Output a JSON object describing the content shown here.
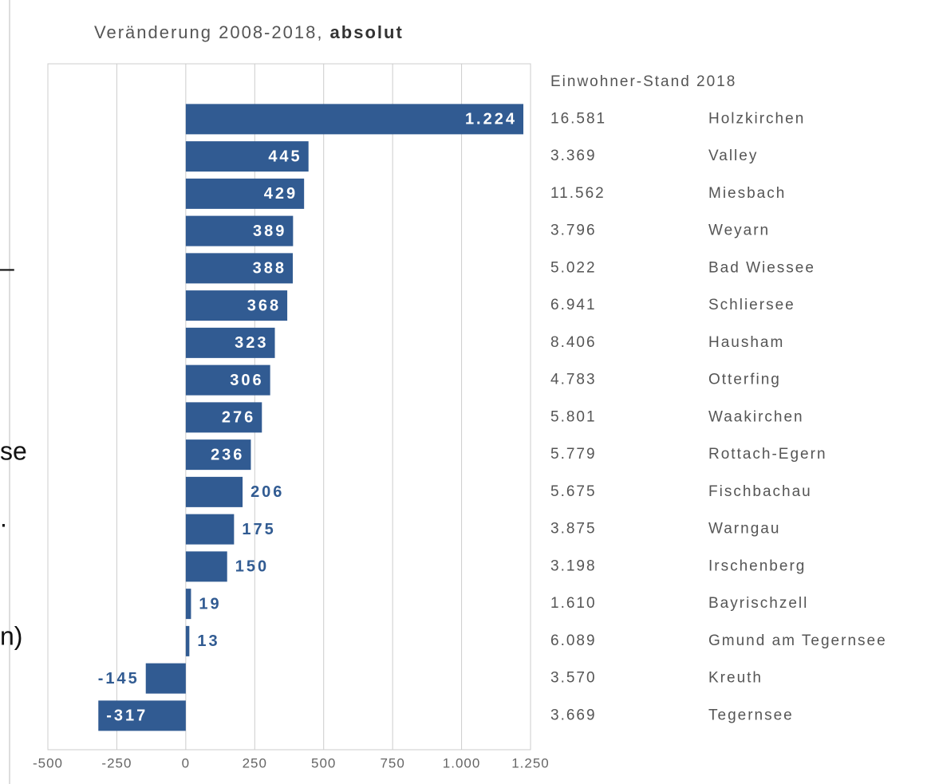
{
  "chart_data": {
    "type": "bar",
    "orientation": "horizontal",
    "title": "Veränderung 2008-2018, ",
    "title_emphasis": "absolut",
    "color": "#315b92",
    "grid": true,
    "categories": [
      "Holzkirchen",
      "Valley",
      "Miesbach",
      "Weyarn",
      "Bad Wiessee",
      "Schliersee",
      "Hausham",
      "Otterfing",
      "Waakirchen",
      "Rottach-Egern",
      "Fischbachau",
      "Warngau",
      "Irschenberg",
      "Bayrischzell",
      "Gmund am Tegernsee",
      "Kreuth",
      "Tegernsee"
    ],
    "values": [
      1224,
      445,
      429,
      389,
      388,
      368,
      323,
      306,
      276,
      236,
      206,
      175,
      150,
      19,
      13,
      -145,
      -317
    ],
    "value_labels": [
      "1.224",
      "445",
      "429",
      "389",
      "388",
      "368",
      "323",
      "306",
      "276",
      "236",
      "206",
      "175",
      "150",
      "19",
      "13",
      "-145",
      "-317"
    ],
    "xlim": [
      -500,
      1250
    ],
    "xticks": [
      -500,
      -250,
      0,
      250,
      500,
      750,
      {
        "value": 1000,
        "label": "1.000"
      },
      {
        "value": 1250,
        "label": "1.250"
      }
    ],
    "table_header": "Einwohner-Stand 2018",
    "population": [
      16581,
      3369,
      11562,
      3796,
      5022,
      6941,
      8406,
      4783,
      5801,
      5779,
      5675,
      3875,
      3198,
      1610,
      6089,
      3570,
      3669
    ],
    "population_labels": [
      "16.581",
      "3.369",
      "11.562",
      "3.796",
      "5.022",
      "6.941",
      "8.406",
      "4.783",
      "5.801",
      "5.779",
      "5.675",
      "3.875",
      "3.198",
      "1.610",
      "6.089",
      "3.570",
      "3.669"
    ]
  },
  "side_text": [
    "–",
    "se",
    ".",
    "n)"
  ]
}
